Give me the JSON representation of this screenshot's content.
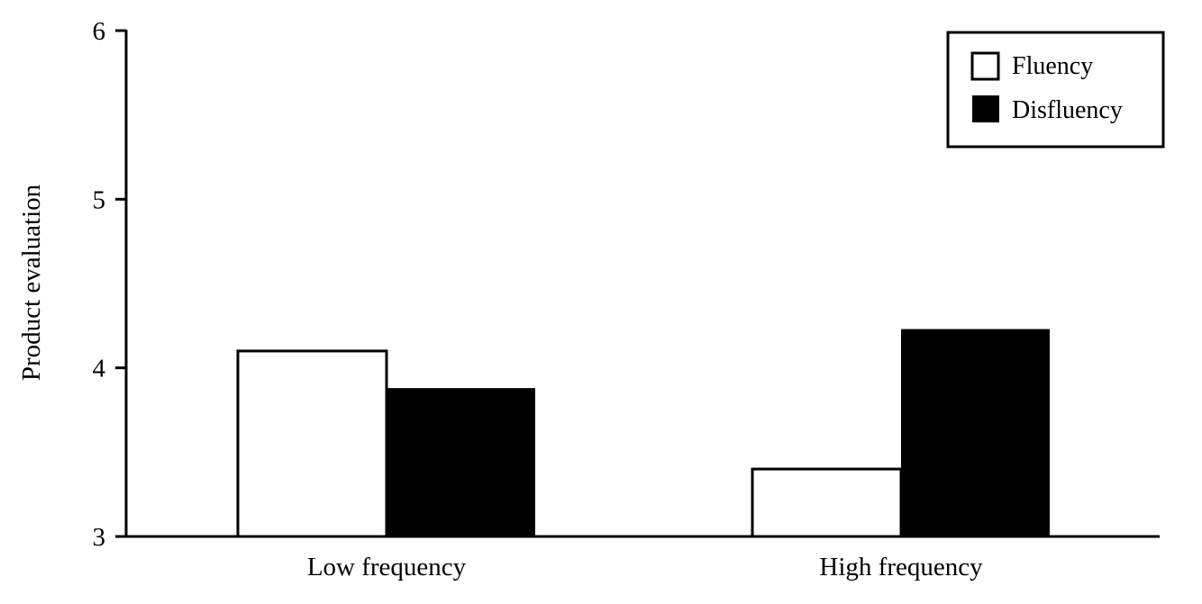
{
  "chart_data": {
    "type": "bar",
    "categories": [
      "Low frequency",
      "High frequency"
    ],
    "series": [
      {
        "name": "Fluency",
        "values": [
          4.1,
          3.4
        ],
        "fill": "#ffffff"
      },
      {
        "name": "Disfluency",
        "values": [
          3.88,
          4.23
        ],
        "fill": "#000000"
      }
    ],
    "ylabel": "Product evaluation",
    "ylim": [
      3,
      6
    ],
    "yticks": [
      3,
      4,
      5,
      6
    ],
    "legend_position": "top-right",
    "grid": false
  }
}
